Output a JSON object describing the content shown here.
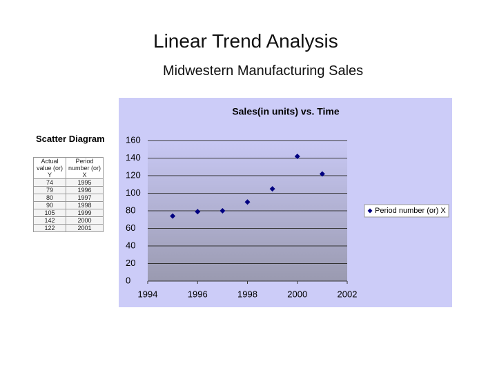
{
  "title": "Linear Trend Analysis",
  "subtitle": "Midwestern Manufacturing Sales",
  "table": {
    "title": "Scatter Diagram",
    "header": [
      "Actual value (or) Y",
      "Period number (or) X"
    ],
    "rows": [
      [
        "74",
        "1995"
      ],
      [
        "79",
        "1996"
      ],
      [
        "80",
        "1997"
      ],
      [
        "90",
        "1998"
      ],
      [
        "105",
        "1999"
      ],
      [
        "142",
        "2000"
      ],
      [
        "122",
        "2001"
      ]
    ]
  },
  "chart_data": {
    "type": "scatter",
    "title": "Sales(in units) vs. Time",
    "series": [
      {
        "name": "Period number (or) X",
        "color": "#000080",
        "x": [
          1995,
          1996,
          1997,
          1998,
          1999,
          2000,
          2001
        ],
        "values": [
          74,
          79,
          80,
          90,
          105,
          142,
          122
        ]
      }
    ],
    "xlim": [
      1994,
      2002
    ],
    "xticks": [
      1994,
      1996,
      1998,
      2000,
      2002
    ],
    "ylim": [
      0,
      160
    ],
    "yticks": [
      0,
      20,
      40,
      60,
      80,
      100,
      120,
      140,
      160
    ],
    "grid": true,
    "legend": "right"
  }
}
